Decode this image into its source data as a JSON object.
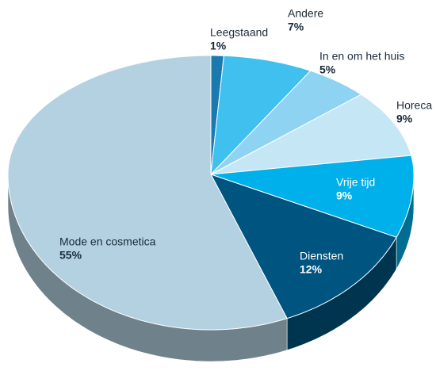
{
  "chart_data": {
    "type": "pie",
    "categories": [
      "Leegstaand",
      "Andere",
      "In en om het huis",
      "Horeca",
      "Vrije tijd",
      "Diensten",
      "Mode en cosmetica"
    ],
    "values": [
      1,
      7,
      5,
      9,
      9,
      12,
      55
    ],
    "value_labels": [
      "1%",
      "7%",
      "5%",
      "9%",
      "9%",
      "12%",
      "55%"
    ],
    "colors": [
      "#1a7ab0",
      "#3fc0ef",
      "#8fd3f3",
      "#c5e6f5",
      "#00b0ea",
      "#005580",
      "#b3d1e0"
    ]
  }
}
